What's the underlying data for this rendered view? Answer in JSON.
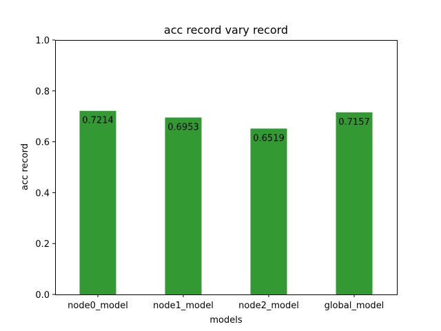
{
  "chart_data": {
    "type": "bar",
    "title": "acc record vary record",
    "xlabel": "models",
    "ylabel": "acc record",
    "categories": [
      "node0_model",
      "node1_model",
      "node2_model",
      "global_model"
    ],
    "values": [
      0.7214,
      0.6953,
      0.6519,
      0.7157
    ],
    "value_labels": [
      "0.7214",
      "0.6953",
      "0.6519",
      "0.7157"
    ],
    "ylim": [
      0,
      1.0
    ],
    "yticks": [
      0.0,
      0.2,
      0.4,
      0.6,
      0.8,
      1.0
    ],
    "ytick_labels": [
      "0.0",
      "0.2",
      "0.4",
      "0.6",
      "0.8",
      "1.0"
    ],
    "grid": false,
    "legend": "none",
    "bar_color": "#339933"
  }
}
